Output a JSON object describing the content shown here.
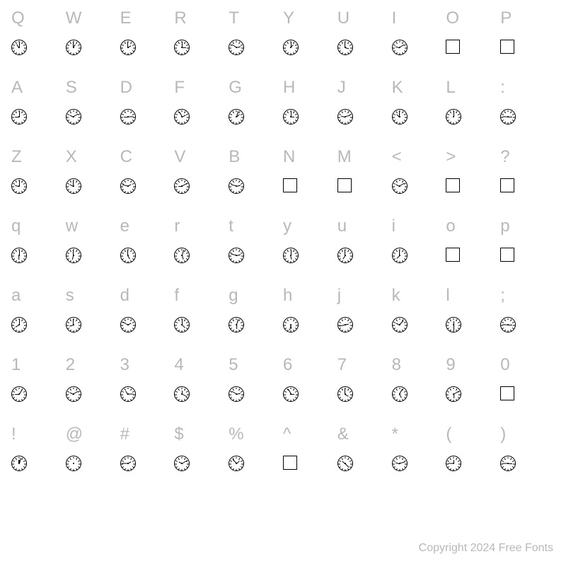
{
  "background_color": "#ffffff",
  "char_color": "#b8b8b8",
  "border_color": "#000000",
  "char_fontsize": 24,
  "copyright": "Copyright 2024 Free Fonts",
  "rows": [
    {
      "chars": [
        "Q",
        "W",
        "E",
        "R",
        "T",
        "Y",
        "U",
        "I",
        "O",
        "P"
      ],
      "glyphs": [
        {
          "type": "clock",
          "hour": 330,
          "min": 0
        },
        {
          "type": "clock",
          "hour": 30,
          "min": 0
        },
        {
          "type": "clock",
          "hour": 60,
          "min": 0
        },
        {
          "type": "clock",
          "hour": 90,
          "min": 0
        },
        {
          "type": "clock",
          "hour": 75,
          "min": 300
        },
        {
          "type": "clock",
          "hour": 45,
          "min": 0
        },
        {
          "type": "clock",
          "hour": 105,
          "min": 0
        },
        {
          "type": "clock",
          "hour": 285,
          "min": 60
        },
        {
          "type": "box"
        },
        {
          "type": "box"
        }
      ]
    },
    {
      "chars": [
        "A",
        "S",
        "D",
        "F",
        "G",
        "H",
        "J",
        "K",
        "L",
        ":"
      ],
      "glyphs": [
        {
          "type": "clock",
          "hour": 270,
          "min": 0
        },
        {
          "type": "clock",
          "hour": 300,
          "min": 60
        },
        {
          "type": "clock",
          "hour": 270,
          "min": 90
        },
        {
          "type": "clock",
          "hour": 60,
          "min": 330
        },
        {
          "type": "clock",
          "hour": 45,
          "min": 15
        },
        {
          "type": "clock",
          "hour": 90,
          "min": 0
        },
        {
          "type": "clock",
          "hour": 285,
          "min": 75
        },
        {
          "type": "clock",
          "hour": 315,
          "min": 0
        },
        {
          "type": "clock",
          "hour": 0,
          "min": 0
        },
        {
          "type": "clock",
          "hour": 90,
          "min": 270
        }
      ]
    },
    {
      "chars": [
        "Z",
        "X",
        "C",
        "V",
        "B",
        "N",
        "M",
        "<",
        ">",
        "?"
      ],
      "glyphs": [
        {
          "type": "clock",
          "hour": 285,
          "min": 0
        },
        {
          "type": "clock",
          "hour": 300,
          "min": 0
        },
        {
          "type": "clock",
          "hour": 60,
          "min": 285
        },
        {
          "type": "clock",
          "hour": 270,
          "min": 60
        },
        {
          "type": "clock",
          "hour": 75,
          "min": 285
        },
        {
          "type": "box"
        },
        {
          "type": "box"
        },
        {
          "type": "clock",
          "hour": 300,
          "min": 60
        },
        {
          "type": "box"
        },
        {
          "type": "box"
        }
      ]
    },
    {
      "chars": [
        "q",
        "w",
        "e",
        "r",
        "t",
        "y",
        "u",
        "i",
        "o",
        "p"
      ],
      "glyphs": [
        {
          "type": "clock",
          "hour": 180,
          "min": 0
        },
        {
          "type": "clock",
          "hour": 195,
          "min": 0
        },
        {
          "type": "clock",
          "hour": 150,
          "min": 0
        },
        {
          "type": "clock",
          "hour": 165,
          "min": 15
        },
        {
          "type": "clock",
          "hour": 75,
          "min": 285
        },
        {
          "type": "clock",
          "hour": 165,
          "min": 0
        },
        {
          "type": "clock",
          "hour": 210,
          "min": 0
        },
        {
          "type": "clock",
          "hour": 225,
          "min": 0
        },
        {
          "type": "box"
        },
        {
          "type": "box"
        }
      ]
    },
    {
      "chars": [
        "a",
        "s",
        "d",
        "f",
        "g",
        "h",
        "j",
        "k",
        "l",
        ";"
      ],
      "glyphs": [
        {
          "type": "clock",
          "hour": 240,
          "min": 0
        },
        {
          "type": "clock",
          "hour": 255,
          "min": 0
        },
        {
          "type": "clock",
          "hour": 60,
          "min": 300
        },
        {
          "type": "clock",
          "hour": 135,
          "min": 0
        },
        {
          "type": "clock",
          "hour": 180,
          "min": 15
        },
        {
          "type": "clock",
          "hour": 165,
          "min": 195
        },
        {
          "type": "clock",
          "hour": 75,
          "min": 255
        },
        {
          "type": "clock",
          "hour": 300,
          "min": 45
        },
        {
          "type": "clock",
          "hour": 0,
          "min": 180
        },
        {
          "type": "clock",
          "hour": 90,
          "min": 270
        }
      ]
    },
    {
      "chars": [
        "1",
        "2",
        "3",
        "4",
        "5",
        "6",
        "7",
        "8",
        "9",
        "0"
      ],
      "glyphs": [
        {
          "type": "clock",
          "hour": 270,
          "min": 30
        },
        {
          "type": "clock",
          "hour": 300,
          "min": 60
        },
        {
          "type": "clock",
          "hour": 330,
          "min": 90
        },
        {
          "type": "clock",
          "hour": 0,
          "min": 120
        },
        {
          "type": "clock",
          "hour": 75,
          "min": 300
        },
        {
          "type": "clock",
          "hour": 90,
          "min": 330
        },
        {
          "type": "clock",
          "hour": 120,
          "min": 0
        },
        {
          "type": "clock",
          "hour": 150,
          "min": 30
        },
        {
          "type": "clock",
          "hour": 180,
          "min": 60
        },
        {
          "type": "box"
        }
      ]
    },
    {
      "chars": [
        "!",
        "@",
        "#",
        "$",
        "%",
        "^",
        "&",
        "*",
        "(",
        ")"
      ],
      "glyphs": [
        {
          "type": "clock",
          "hour": 0,
          "min": 15
        },
        {
          "type": "clock",
          "hour": 0,
          "min": 0,
          "nohands": true
        },
        {
          "type": "clock",
          "hour": 60,
          "min": 270
        },
        {
          "type": "clock",
          "hour": 300,
          "min": 60
        },
        {
          "type": "clock",
          "hour": 45,
          "min": 315
        },
        {
          "type": "box"
        },
        {
          "type": "clock",
          "hour": 315,
          "min": 135
        },
        {
          "type": "clock",
          "hour": 285,
          "min": 75
        },
        {
          "type": "clock",
          "hour": 0,
          "min": 270
        },
        {
          "type": "clock",
          "hour": 90,
          "min": 270
        }
      ]
    }
  ]
}
